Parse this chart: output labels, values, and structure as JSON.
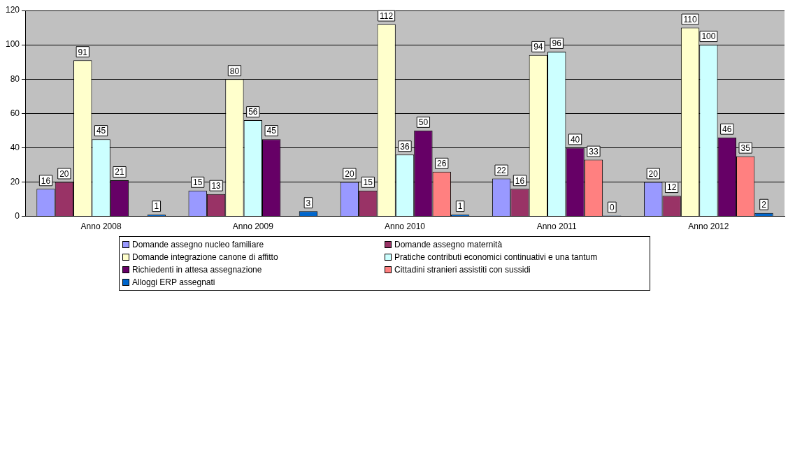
{
  "chart_data": {
    "type": "bar",
    "categories": [
      "Anno 2008",
      "Anno 2009",
      "Anno 2010",
      "Anno 2011",
      "Anno 2012"
    ],
    "series": [
      {
        "name": "Domande assegno nucleo familiare",
        "color": "#9999ff",
        "values": [
          16,
          15,
          20,
          22,
          20
        ]
      },
      {
        "name": "Domande assegno maternità",
        "color": "#993366",
        "values": [
          20,
          13,
          15,
          16,
          12
        ]
      },
      {
        "name": "Domande integrazione canone di affitto",
        "color": "#ffffcc",
        "values": [
          91,
          80,
          112,
          94,
          110
        ]
      },
      {
        "name": "Pratiche contributi economici continuativi e una tantum",
        "color": "#ccffff",
        "values": [
          45,
          56,
          36,
          96,
          100
        ]
      },
      {
        "name": "Richiedenti in attesa assegnazione",
        "color": "#660066",
        "values": [
          21,
          45,
          50,
          40,
          46
        ]
      },
      {
        "name": "Cittadini stranieri assistiti con sussidi",
        "color": "#ff8080",
        "values": [
          null,
          null,
          26,
          33,
          35
        ]
      },
      {
        "name": "Alloggi ERP assegnati",
        "color": "#0066cc",
        "values": [
          1,
          3,
          1,
          0,
          2
        ]
      }
    ],
    "ylim": [
      0,
      120
    ],
    "yticks": [
      0,
      20,
      40,
      60,
      80,
      100,
      120
    ],
    "grid": "y",
    "legend": "bottom",
    "data_labels": true
  }
}
